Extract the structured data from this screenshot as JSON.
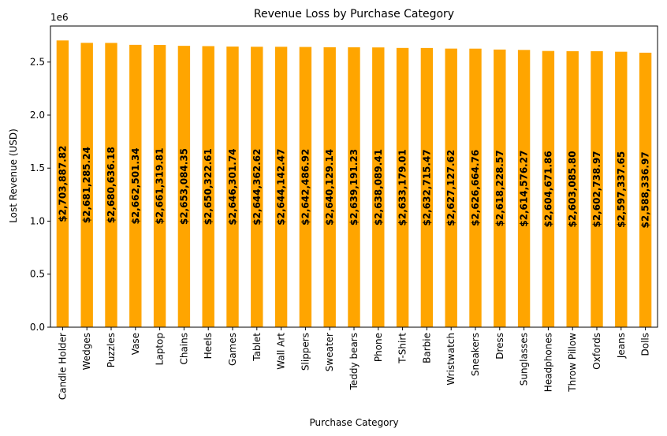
{
  "chart_data": {
    "type": "bar",
    "title": "Revenue Loss by Purchase Category",
    "xlabel": "Purchase Category",
    "ylabel": "Lost Revenue (USD)",
    "y_offset_label": "1e6",
    "ylim": [
      0,
      2840000
    ],
    "yticks": [
      0,
      500000,
      1000000,
      1500000,
      2000000,
      2500000
    ],
    "ytick_labels": [
      "0.0",
      "0.5",
      "1.0",
      "1.5",
      "2.0",
      "2.5"
    ],
    "bar_color": "#FFA500",
    "grid": false,
    "categories": [
      "Candle Holder",
      "Wedges",
      "Puzzles",
      "Vase",
      "Laptop",
      "Chains",
      "Heels",
      "Games",
      "Tablet",
      "Wall Art",
      "Slippers",
      "Sweater",
      "Teddy bears",
      "Phone",
      "T-Shirt",
      "Barbie",
      "Wristwatch",
      "Sneakers",
      "Dress",
      "Sunglasses",
      "Headphones",
      "Throw Pillow",
      "Oxfords",
      "Jeans",
      "Dolls"
    ],
    "values": [
      2703887.82,
      2681285.24,
      2680636.18,
      2662501.34,
      2661319.81,
      2653084.35,
      2650322.61,
      2646301.74,
      2644362.62,
      2644142.47,
      2642486.92,
      2640129.14,
      2639191.23,
      2638089.41,
      2633179.01,
      2632715.47,
      2627127.62,
      2626664.76,
      2618228.57,
      2614576.27,
      2604671.86,
      2603085.8,
      2602738.97,
      2597337.65,
      2588336.97
    ],
    "data_labels": [
      "$2,703,887.82",
      "$2,681,285.24",
      "$2,680,636.18",
      "$2,662,501.34",
      "$2,661,319.81",
      "$2,653,084.35",
      "$2,650,322.61",
      "$2,646,301.74",
      "$2,644,362.62",
      "$2,644,142.47",
      "$2,642,486.92",
      "$2,640,129.14",
      "$2,639,191.23",
      "$2,638,089.41",
      "$2,633,179.01",
      "$2,632,715.47",
      "$2,627,127.62",
      "$2,626,664.76",
      "$2,618,228.57",
      "$2,614,576.27",
      "$2,604,671.86",
      "$2,603,085.80",
      "$2,602,738.97",
      "$2,597,337.65",
      "$2,588,336.97"
    ]
  }
}
